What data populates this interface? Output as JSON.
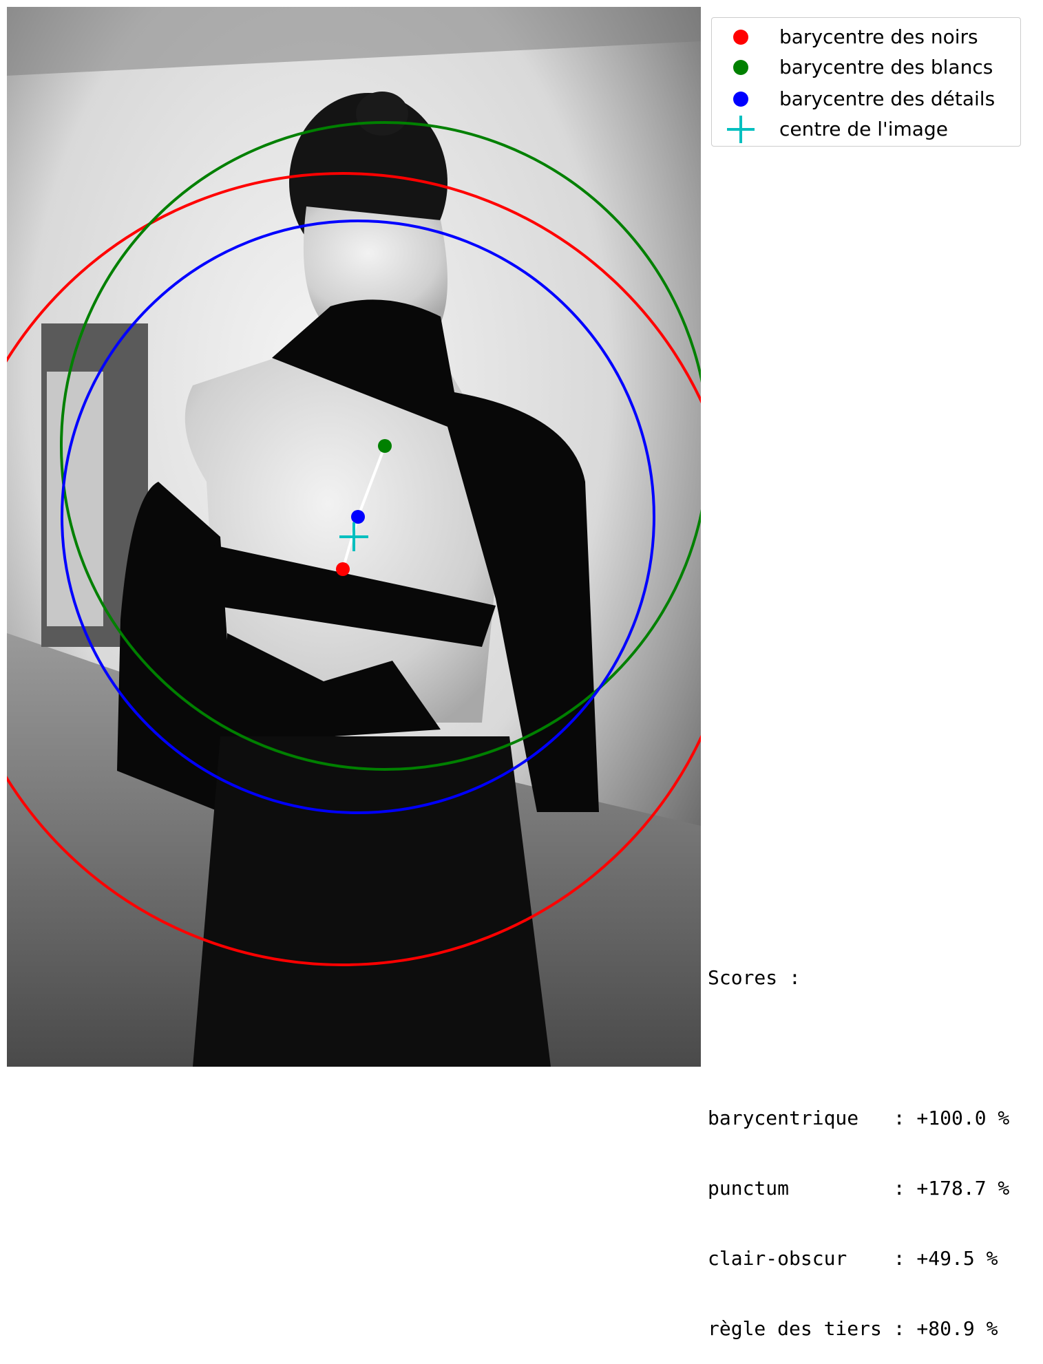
{
  "chart_data": {
    "type": "scatter",
    "image_description": "",
    "x_range": [
      0,
      1008
    ],
    "y_range": [
      0,
      1540
    ],
    "points": [
      {
        "id": "noirs",
        "x": 488,
        "y": 817,
        "color": "#ff0000",
        "marker": "circle"
      },
      {
        "id": "blancs",
        "x": 549,
        "y": 638,
        "color": "#008000",
        "marker": "circle"
      },
      {
        "id": "details",
        "x": 510,
        "y": 741,
        "color": "#0000ff",
        "marker": "circle"
      },
      {
        "id": "centre",
        "x": 504,
        "y": 770,
        "color": "#00bfbf",
        "marker": "plus"
      }
    ],
    "circles": [
      {
        "id": "circle-noirs",
        "cx": 488,
        "cy": 817,
        "r": 575,
        "color": "#ff0000"
      },
      {
        "id": "circle-blancs",
        "cx": 549,
        "cy": 638,
        "r": 470,
        "color": "#008000"
      },
      {
        "id": "circle-details",
        "cx": 510,
        "cy": 741,
        "r": 430,
        "color": "#0000ff"
      }
    ],
    "connector": {
      "from": "noirs",
      "through": "details",
      "to": "blancs",
      "color": "#ffffff"
    },
    "legend": {
      "placement": "top-right",
      "entries": [
        {
          "label": "barycentre des noirs",
          "color": "#ff0000",
          "marker": "circle"
        },
        {
          "label": "barycentre des blancs",
          "color": "#008000",
          "marker": "circle"
        },
        {
          "label": "barycentre des détails",
          "color": "#0000ff",
          "marker": "circle"
        },
        {
          "label": "centre de l'image",
          "color": "#00bfbf",
          "marker": "plus"
        }
      ]
    },
    "scores": {
      "heading": "Scores :",
      "lines": [
        "barycentrique   : +100.0 %",
        "punctum         : +178.7 %",
        "clair-obscur    : +49.5 %",
        "règle des tiers : +80.9 %"
      ]
    }
  }
}
